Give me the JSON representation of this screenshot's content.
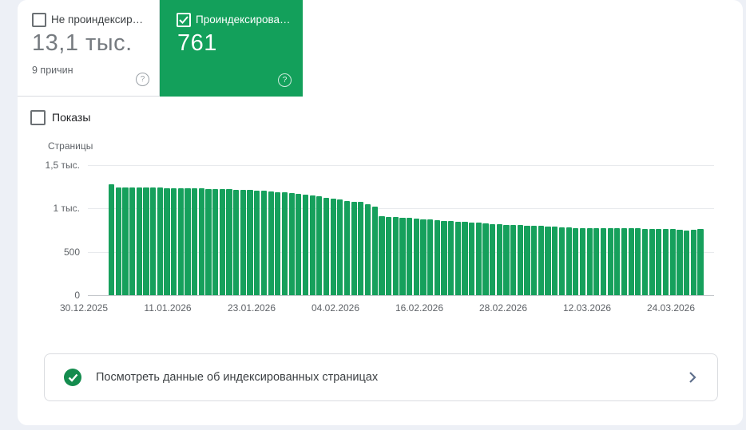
{
  "cards": {
    "not_indexed": {
      "label": "Не проиндексир…",
      "value": "13,1 тыс.",
      "sub": "9 причин",
      "checked": false
    },
    "indexed": {
      "label": "Проиндексирова…",
      "value": "761",
      "checked": true
    }
  },
  "filters": {
    "impressions_label": "Показы",
    "impressions_checked": false
  },
  "chart_data": {
    "type": "bar",
    "title": "",
    "ylabel": "Страницы",
    "xlabel": "",
    "ylim": [
      0,
      1500
    ],
    "y_ticks": [
      "1,5 тыс.",
      "1 тыс.",
      "500",
      "0"
    ],
    "y_tick_values": [
      1500,
      1000,
      500,
      0
    ],
    "x_tick_labels": [
      "30.12.2025",
      "11.01.2026",
      "23.01.2026",
      "04.02.2026",
      "16.02.2026",
      "28.02.2026",
      "12.03.2026",
      "24.03.2026"
    ],
    "x_unit": "day",
    "grid": true,
    "legend_position": "none",
    "series": [
      {
        "name": "Проиндексировано",
        "color": "#16A05C",
        "values": [
          1281,
          1244,
          1243,
          1244,
          1242,
          1243,
          1241,
          1240,
          1238,
          1236,
          1233,
          1231,
          1232,
          1229,
          1226,
          1223,
          1225,
          1221,
          1218,
          1215,
          1211,
          1207,
          1203,
          1198,
          1192,
          1185,
          1177,
          1168,
          1158,
          1147,
          1138,
          1127,
          1116,
          1106,
          1089,
          1077,
          1073,
          1048,
          1026,
          910,
          906,
          900,
          895,
          889,
          884,
          879,
          872,
          866,
          860,
          856,
          850,
          845,
          840,
          835,
          828,
          822,
          816,
          812,
          809,
          806,
          804,
          802,
          798,
          793,
          789,
          785,
          781,
          778,
          776,
          775,
          774,
          773,
          772,
          772,
          771,
          770,
          769,
          768,
          767,
          766,
          765,
          764,
          752,
          748,
          757,
          761
        ]
      }
    ]
  },
  "footer": {
    "action_label": "Посмотреть данные об индексированных страницах"
  },
  "icons": {
    "help_glyph": "?"
  },
  "colors": {
    "card_green": "#13A05B",
    "bar_green": "#16A05C",
    "footer_check_green": "#148C4E",
    "page_background": "#EDF0F6",
    "panel_background": "#FFFFFF",
    "border_gray": "#DADCE0",
    "text_dark": "#3C4043",
    "text_gray": "#5F6368",
    "big_number_gray": "#767B80",
    "gridline": "#E8EAED",
    "axis_line": "#C4C7CB",
    "chevron_blue_gray": "#5F708C"
  }
}
